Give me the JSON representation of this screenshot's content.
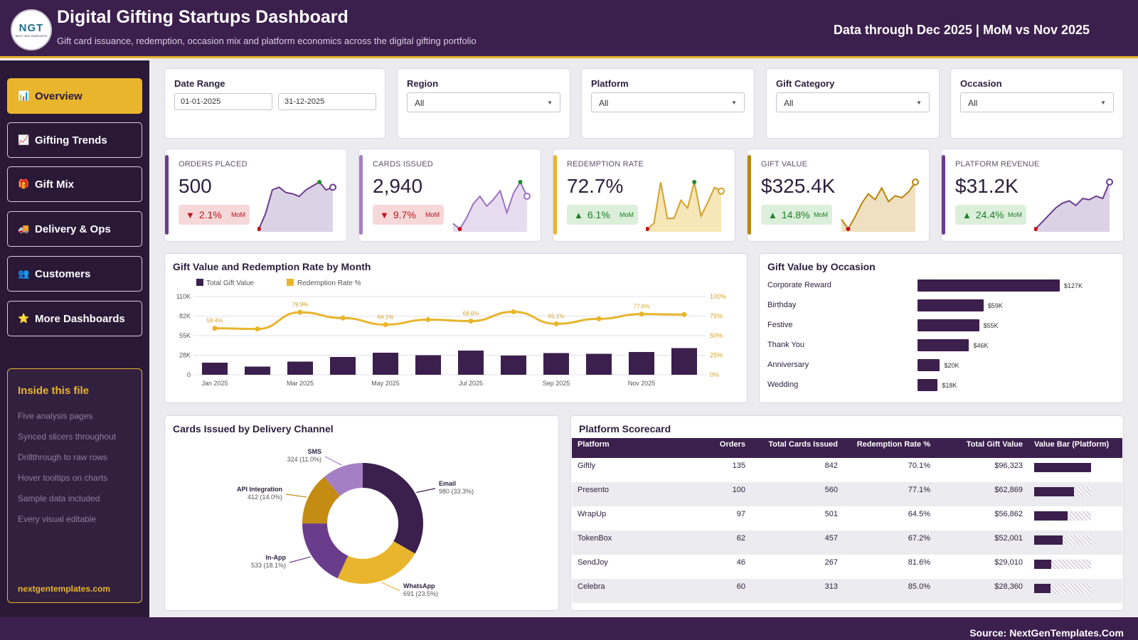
{
  "header": {
    "logo_text": "NGT",
    "logo_sub": "NEXT GEN TEMPLATES",
    "title": "Digital Gifting Startups Dashboard",
    "subtitle": "Gift card issuance, redemption, occasion mix and platform economics across the digital gifting portfolio",
    "data_through": "Data through Dec 2025 | MoM vs Nov 2025"
  },
  "sidebar": {
    "items": [
      {
        "label": "Overview",
        "icon": "chart-icon",
        "glyph": "📊",
        "active": true
      },
      {
        "label": "Gifting Trends",
        "icon": "trend-icon",
        "glyph": "📈",
        "active": false
      },
      {
        "label": "Gift Mix",
        "icon": "gift-icon",
        "glyph": "🎁",
        "active": false
      },
      {
        "label": "Delivery & Ops",
        "icon": "truck-icon",
        "glyph": "🚚",
        "active": false
      },
      {
        "label": "Customers",
        "icon": "people-icon",
        "glyph": "👥",
        "active": false
      },
      {
        "label": "More Dashboards",
        "icon": "star-icon",
        "glyph": "⭐",
        "active": false
      }
    ],
    "inside": {
      "title": "Inside this file",
      "items": [
        "Five analysis pages",
        "Synced slicers throughout",
        "Drillthrough to raw rows",
        "Hover tooltips on charts",
        "Sample data included",
        "Every visual editable"
      ],
      "link": "nextgentemplates.com"
    }
  },
  "filters": {
    "date_range": {
      "label": "Date Range",
      "start": "01-01-2025",
      "end": "31-12-2025"
    },
    "region": {
      "label": "Region",
      "value": "All"
    },
    "platform": {
      "label": "Platform",
      "value": "All"
    },
    "gift_category": {
      "label": "Gift Category",
      "value": "All"
    },
    "occasion": {
      "label": "Occasion",
      "value": "All"
    }
  },
  "kpis": [
    {
      "label": "ORDERS PLACED",
      "value": "500",
      "change": "2.1%",
      "direction": "down",
      "mom": "MoM",
      "accent": "#6a3d8c",
      "spark": [
        30,
        42,
        60,
        62,
        58,
        57,
        55,
        60,
        63,
        66,
        60,
        62
      ],
      "spark_fill": "#dcd2e6",
      "spark_line": "#6a3d8c"
    },
    {
      "label": "CARDS ISSUED",
      "value": "2,940",
      "change": "9.7%",
      "direction": "down",
      "mom": "MoM",
      "accent": "#a57fc4",
      "spark": [
        30,
        25,
        35,
        48,
        55,
        46,
        52,
        60,
        40,
        58,
        68,
        55
      ],
      "spark_fill": "#e8dcf0",
      "spark_line": "#9b72bf"
    },
    {
      "label": "REDEMPTION RATE",
      "value": "72.7%",
      "change": "6.1%",
      "direction": "up",
      "mom": "MoM",
      "accent": "#e8b52c",
      "spark": [
        59.4,
        62,
        79.9,
        64,
        64.1,
        72,
        68.6,
        80,
        65.1,
        71,
        77.6,
        76
      ],
      "spark_fill": "#f6e6b8",
      "spark_line": "#d4a12a"
    },
    {
      "label": "GIFT VALUE",
      "value": "$325.4K",
      "change": "14.8%",
      "direction": "up",
      "mom": "MoM",
      "accent": "#b8860b",
      "spark": [
        17,
        12,
        18,
        25,
        30,
        27,
        33,
        26,
        29,
        28,
        31,
        36
      ],
      "spark_fill": "#eee0c0",
      "spark_line": "#b8860b"
    },
    {
      "label": "PLATFORM REVENUE",
      "value": "$31.2K",
      "change": "24.4%",
      "direction": "up",
      "mom": "MoM",
      "accent": "#6a3d8c",
      "spark": [
        20,
        26,
        32,
        38,
        42,
        44,
        40,
        46,
        45,
        48,
        46,
        60
      ],
      "spark_fill": "#dcd2e6",
      "spark_line": "#6a3d8c"
    }
  ],
  "chart_data": [
    {
      "type": "bar",
      "title": "Gift Value and Redemption Rate by Month",
      "legend": [
        "Total Gift Value",
        "Redemption Rate %"
      ],
      "categories": [
        "Jan 2025",
        "Feb 2025",
        "Mar 2025",
        "Apr 2025",
        "May 2025",
        "Jun 2025",
        "Jul 2025",
        "Aug 2025",
        "Sep 2025",
        "Oct 2025",
        "Nov 2025",
        "Dec 2025"
      ],
      "x_tick_labels": [
        "Jan 2025",
        "",
        "Mar 2025",
        "",
        "May 2025",
        "",
        "Jul 2025",
        "",
        "Sep 2025",
        "",
        "Nov 2025",
        ""
      ],
      "series": [
        {
          "name": "Total Gift Value",
          "values": [
            17000,
            11500,
            18500,
            25000,
            31000,
            27500,
            34000,
            27000,
            30500,
            29500,
            32000,
            37500
          ]
        },
        {
          "name": "Redemption Rate %",
          "values": [
            59.4,
            58.5,
            79.9,
            72.5,
            64.1,
            70.5,
            68.6,
            80.5,
            65.1,
            71.5,
            77.6,
            77.0
          ]
        }
      ],
      "point_labels": [
        "59.4%",
        "",
        "79.9%",
        "",
        "64.1%",
        "",
        "68.6%",
        "",
        "65.1%",
        "",
        "77.6%",
        ""
      ],
      "y_ticks": [
        "0",
        "28K",
        "55K",
        "82K",
        "110K"
      ],
      "y2_ticks": [
        "0%",
        "25%",
        "50%",
        "75%",
        "100%"
      ],
      "ylim": [
        0,
        110000
      ],
      "y2lim": [
        0,
        100
      ],
      "colors": {
        "bar": "#3b1f4d",
        "line": "#e8b52c"
      }
    },
    {
      "type": "bar",
      "orientation": "horizontal",
      "title": "Gift Value by Occasion",
      "categories": [
        "Corporate Reward",
        "Birthday",
        "Festive",
        "Thank You",
        "Anniversary",
        "Wedding"
      ],
      "values": [
        127,
        59,
        55,
        46,
        20,
        18
      ],
      "value_labels": [
        "$127K",
        "$59K",
        "$55K",
        "$46K",
        "$20K",
        "$18K"
      ]
    },
    {
      "type": "pie",
      "title": "Cards Issued by Delivery Channel",
      "slices": [
        {
          "name": "Email",
          "value": 980,
          "label": "980 (33.3%)",
          "color": "#3b1f4d"
        },
        {
          "name": "WhatsApp",
          "value": 691,
          "label": "691 (23.5%)",
          "color": "#e8b52c"
        },
        {
          "name": "In-App",
          "value": 533,
          "label": "533 (18.1%)",
          "color": "#6a3d8c"
        },
        {
          "name": "API Integration",
          "value": 412,
          "label": "412 (14.0%)",
          "color": "#c48c12"
        },
        {
          "name": "SMS",
          "value": 324,
          "label": "324 (11.0%)",
          "color": "#a57fc4"
        }
      ]
    }
  ],
  "scorecard": {
    "title": "Platform Scorecard",
    "columns": [
      "Platform",
      "Orders",
      "Total Cards Issued",
      "Redemption Rate %",
      "Total Gift Value",
      "Value Bar (Platform)"
    ],
    "rows": [
      {
        "platform": "Giftly",
        "orders": "135",
        "cards": "842",
        "rate": "70.1%",
        "value": "$96,323",
        "share": 1.0
      },
      {
        "platform": "Presento",
        "orders": "100",
        "cards": "560",
        "rate": "77.1%",
        "value": "$62,869",
        "share": 0.7
      },
      {
        "platform": "WrapUp",
        "orders": "97",
        "cards": "501",
        "rate": "64.5%",
        "value": "$56,862",
        "share": 0.59
      },
      {
        "platform": "TokenBox",
        "orders": "62",
        "cards": "457",
        "rate": "67.2%",
        "value": "$52,001",
        "share": 0.5
      },
      {
        "platform": "SendJoy",
        "orders": "46",
        "cards": "267",
        "rate": "81.6%",
        "value": "$29,010",
        "share": 0.3
      },
      {
        "platform": "Celebra",
        "orders": "60",
        "cards": "313",
        "rate": "85.0%",
        "value": "$28,360",
        "share": 0.29
      }
    ]
  },
  "footer": {
    "source": "Source: NextGenTemplates.Com"
  }
}
